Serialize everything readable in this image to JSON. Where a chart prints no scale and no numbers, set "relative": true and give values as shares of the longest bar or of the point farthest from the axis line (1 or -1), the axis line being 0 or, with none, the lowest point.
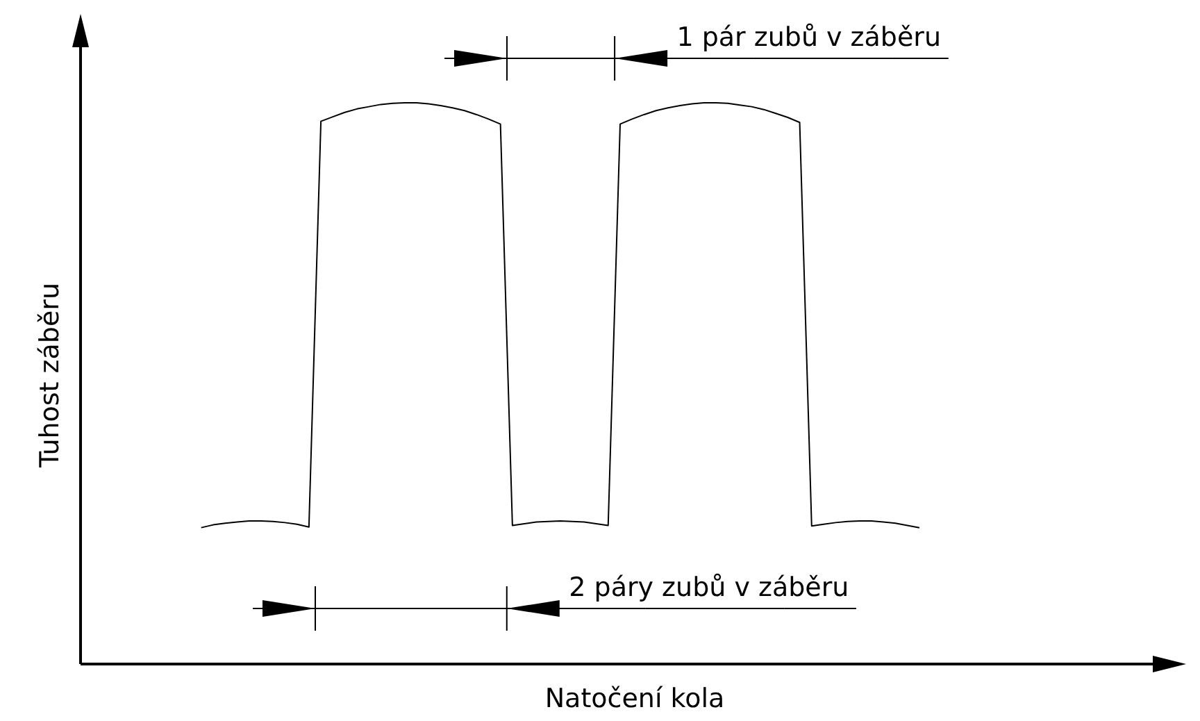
{
  "chart_data": {
    "type": "line",
    "relative": true,
    "xlabel": "Natočení kola",
    "ylabel": "Tuhost záběru",
    "color": "#000000",
    "legend": false,
    "marker": "none",
    "categories": [
      null,
      null,
      null,
      null,
      null,
      null,
      null,
      null,
      null,
      null,
      null,
      null,
      null,
      null,
      null,
      null,
      null,
      null,
      null,
      null,
      null,
      null,
      null,
      null,
      null,
      null,
      null,
      null,
      null,
      null,
      null,
      null,
      null,
      null,
      null,
      null,
      null,
      null,
      null,
      null,
      null,
      null,
      null,
      null,
      null,
      null,
      null,
      null,
      null,
      null,
      null,
      null,
      null,
      null,
      null,
      null,
      null,
      null,
      null,
      null,
      null
    ],
    "values": [
      0.243,
      0.248,
      0.251,
      0.253,
      0.255,
      0.255,
      0.254,
      0.252,
      0.249,
      0.244,
      0.967,
      0.975,
      0.983,
      0.989,
      0.993,
      0.997,
      0.999,
      1,
      1,
      0.998,
      0.995,
      0.991,
      0.986,
      0.979,
      0.971,
      0.962,
      0.247,
      0.25,
      0.253,
      0.254,
      0.255,
      0.254,
      0.253,
      0.25,
      0.247,
      0.962,
      0.971,
      0.979,
      0.986,
      0.991,
      0.995,
      0.998,
      1,
      1,
      0.999,
      0.996,
      0.993,
      0.988,
      0.981,
      0.974,
      0.965,
      0.246,
      0.249,
      0.252,
      0.254,
      0.255,
      0.255,
      0.253,
      0.251,
      0.247,
      0.243
    ],
    "annotations": [
      "1 pár zubů v záběru",
      "2 páry zubů v záběru"
    ]
  }
}
